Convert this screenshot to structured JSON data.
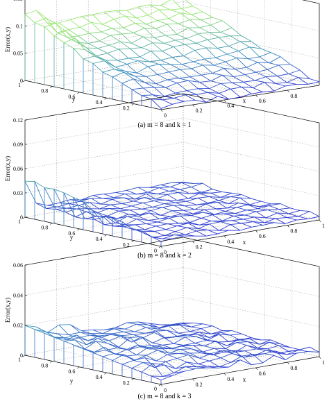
{
  "chart_data": [
    {
      "type": "surface",
      "caption": "(a) m = 8 and k = 1",
      "zlabel": "Error(x,y)",
      "xlabel": "x",
      "ylabel": "y",
      "zticks": [
        "0",
        "0.05",
        "0.1",
        "0.15"
      ],
      "xticks": [
        "0",
        "0.2",
        "0.4",
        "0.6",
        "0.8"
      ],
      "yticks": [
        "0.2",
        "0.4",
        "0.6",
        "0.8",
        "1"
      ],
      "zlim": [
        0,
        0.15
      ],
      "grid": true,
      "note": "wireframe surface, approximate error values on 14x14 grid"
    },
    {
      "type": "surface",
      "caption": "(b) m = 8 and k = 2",
      "zlabel": "Error(x,y)",
      "xlabel": "x",
      "ylabel": "y",
      "zticks": [
        "0",
        "0.03",
        "0.06",
        "0.09",
        "0.12"
      ],
      "xticks": [
        "0",
        "0.2",
        "0.4",
        "0.6",
        "0.8",
        "1"
      ],
      "yticks": [
        "0",
        "0.2",
        "0.4",
        "0.6",
        "0.8",
        "1"
      ],
      "zlim": [
        0,
        0.12
      ],
      "grid": true
    },
    {
      "type": "surface",
      "caption": "(c) m = 8 and k = 3",
      "zlabel": "Error(x,y)",
      "xlabel": "x",
      "ylabel": "y",
      "zticks": [
        "0",
        "0.02",
        "0.04",
        "0.06"
      ],
      "xticks": [
        "0",
        "0.2",
        "0.4",
        "0.6",
        "0.8",
        "1"
      ],
      "yticks": [
        "0",
        "0.2",
        "0.4",
        "0.6",
        "0.8",
        "1"
      ],
      "zlim": [
        0,
        0.06
      ],
      "grid": true
    }
  ]
}
